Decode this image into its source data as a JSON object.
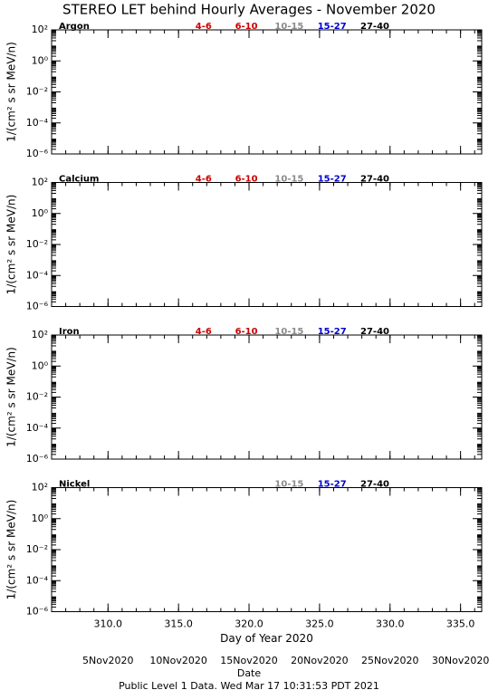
{
  "title": "STEREO LET behind Hourly Averages - November 2020",
  "chart_data": [
    {
      "type": "line",
      "title": "Argon",
      "ylabel": "1/(cm² s sr MeV/n)",
      "log_y": true,
      "xlim": [
        306,
        336.5
      ],
      "ylim": [
        1e-06,
        100
      ],
      "xticks": [
        310,
        315,
        320,
        325,
        330,
        335
      ],
      "yticks": [
        {
          "value": 100,
          "label": "10²"
        },
        {
          "value": 1,
          "label": "10⁰"
        },
        {
          "value": 0.01,
          "label": "10⁻²"
        },
        {
          "value": 0.0001,
          "label": "10⁻⁴"
        },
        {
          "value": 1e-06,
          "label": "10⁻⁶"
        }
      ],
      "series": [
        {
          "name": "4-6",
          "color": "#cc0000",
          "values": []
        },
        {
          "name": "6-10",
          "color": "#cc0000",
          "values": []
        },
        {
          "name": "10-15",
          "color": "#8c8c8c",
          "values": []
        },
        {
          "name": "15-27",
          "color": "#0000cc",
          "values": []
        },
        {
          "name": "27-40",
          "color": "#000000",
          "values": []
        }
      ]
    },
    {
      "type": "line",
      "title": "Calcium",
      "ylabel": "1/(cm² s sr MeV/n)",
      "log_y": true,
      "xlim": [
        306,
        336.5
      ],
      "ylim": [
        1e-06,
        100
      ],
      "xticks": [
        310,
        315,
        320,
        325,
        330,
        335
      ],
      "yticks": [
        {
          "value": 100,
          "label": "10²"
        },
        {
          "value": 1,
          "label": "10⁰"
        },
        {
          "value": 0.01,
          "label": "10⁻²"
        },
        {
          "value": 0.0001,
          "label": "10⁻⁴"
        },
        {
          "value": 1e-06,
          "label": "10⁻⁶"
        }
      ],
      "series": [
        {
          "name": "4-6",
          "color": "#cc0000",
          "values": []
        },
        {
          "name": "6-10",
          "color": "#cc0000",
          "values": []
        },
        {
          "name": "10-15",
          "color": "#8c8c8c",
          "values": []
        },
        {
          "name": "15-27",
          "color": "#0000cc",
          "values": []
        },
        {
          "name": "27-40",
          "color": "#000000",
          "values": []
        }
      ]
    },
    {
      "type": "line",
      "title": "Iron",
      "ylabel": "1/(cm² s sr MeV/n)",
      "log_y": true,
      "xlim": [
        306,
        336.5
      ],
      "ylim": [
        1e-06,
        100
      ],
      "xticks": [
        310,
        315,
        320,
        325,
        330,
        335
      ],
      "yticks": [
        {
          "value": 100,
          "label": "10²"
        },
        {
          "value": 1,
          "label": "10⁰"
        },
        {
          "value": 0.01,
          "label": "10⁻²"
        },
        {
          "value": 0.0001,
          "label": "10⁻⁴"
        },
        {
          "value": 1e-06,
          "label": "10⁻⁶"
        }
      ],
      "series": [
        {
          "name": "4-6",
          "color": "#cc0000",
          "values": []
        },
        {
          "name": "6-10",
          "color": "#cc0000",
          "values": []
        },
        {
          "name": "10-15",
          "color": "#8c8c8c",
          "values": []
        },
        {
          "name": "15-27",
          "color": "#0000cc",
          "values": []
        },
        {
          "name": "27-40",
          "color": "#000000",
          "values": []
        }
      ]
    },
    {
      "type": "line",
      "title": "Nickel",
      "ylabel": "1/(cm² s sr MeV/n)",
      "xlabel": "Day of Year 2020",
      "log_y": true,
      "xlim": [
        306,
        336.5
      ],
      "ylim": [
        1e-06,
        100
      ],
      "xticks": [
        {
          "value": 310,
          "label": "310.0"
        },
        {
          "value": 315,
          "label": "315.0"
        },
        {
          "value": 320,
          "label": "320.0"
        },
        {
          "value": 325,
          "label": "325.0"
        },
        {
          "value": 330,
          "label": "330.0"
        },
        {
          "value": 335,
          "label": "335.0"
        }
      ],
      "yticks": [
        {
          "value": 100,
          "label": "10²"
        },
        {
          "value": 1,
          "label": "10⁰"
        },
        {
          "value": 0.01,
          "label": "10⁻²"
        },
        {
          "value": 0.0001,
          "label": "10⁻⁴"
        },
        {
          "value": 1e-06,
          "label": "10⁻⁶"
        }
      ],
      "series": [
        {
          "name": "10-15",
          "color": "#8c8c8c",
          "values": []
        },
        {
          "name": "15-27",
          "color": "#0000cc",
          "values": []
        },
        {
          "name": "27-40",
          "color": "#000000",
          "values": []
        }
      ]
    }
  ],
  "date_axis": {
    "xticks": [
      {
        "value": 310,
        "label": "5Nov2020"
      },
      {
        "value": 315,
        "label": "10Nov2020"
      },
      {
        "value": 320,
        "label": "15Nov2020"
      },
      {
        "value": 325,
        "label": "20Nov2020"
      },
      {
        "value": 330,
        "label": "25Nov2020"
      },
      {
        "value": 335,
        "label": "30Nov2020"
      }
    ],
    "label": "Date"
  },
  "footer": "Public Level 1 Data. Wed Mar 17 10:31:53 PDT 2021"
}
